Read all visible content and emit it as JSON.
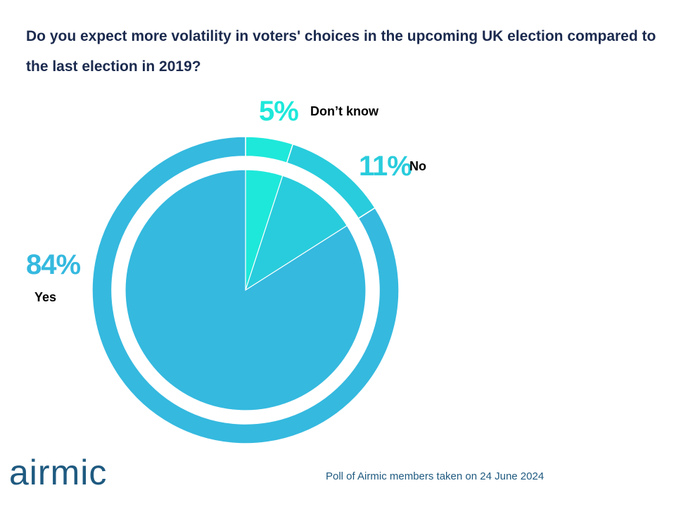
{
  "title": "Do you expect more volatility in voters' choices in the upcoming UK election compared to the last election in 2019?",
  "brand": {
    "logo_text": "airmic"
  },
  "footnote": "Poll of Airmic members taken on 24 June 2024",
  "chart_data": {
    "type": "pie",
    "categories": [
      "Don’t know",
      "No",
      "Yes"
    ],
    "values": [
      5,
      11,
      84
    ],
    "percent_labels": [
      "5%",
      "11%",
      "84%"
    ],
    "colors": [
      "#1ee8da",
      "#29ccdc",
      "#35b9df"
    ],
    "title": "Do you expect more volatility in voters' choices in the upcoming UK election compared to the last election in 2019?"
  }
}
